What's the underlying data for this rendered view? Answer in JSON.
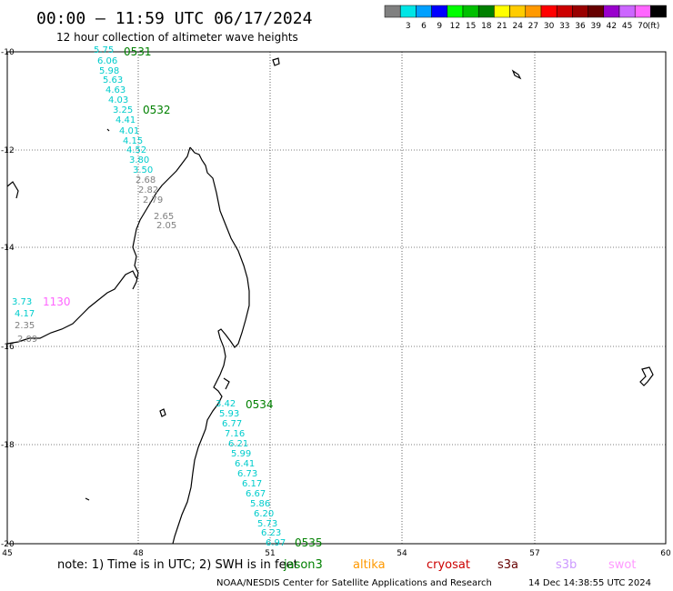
{
  "header": {
    "title": "00:00 — 11:59 UTC 06/17/2024",
    "subtitle": "12 hour collection of altimeter wave heights"
  },
  "legend": {
    "unit": "(ft)",
    "colors": [
      "#808080",
      "#00e5e5",
      "#00a0ff",
      "#0000ff",
      "#00ff00",
      "#00c000",
      "#008000",
      "#ffff00",
      "#ffcc00",
      "#ff9900",
      "#ff0000",
      "#cc0000",
      "#990000",
      "#660000",
      "#9900cc",
      "#cc66ff",
      "#ff66ff",
      "#000000"
    ],
    "labels": [
      "3",
      "6",
      "9",
      "12",
      "15",
      "18",
      "21",
      "24",
      "27",
      "30",
      "33",
      "36",
      "39",
      "42",
      "45",
      "70"
    ]
  },
  "map": {
    "x_ticks": [
      "45",
      "48",
      "51",
      "54",
      "57",
      "60"
    ],
    "y_ticks": [
      "-10",
      "-12",
      "-14",
      "-16",
      "-18",
      "-20"
    ],
    "lon_range": [
      45,
      60
    ],
    "lat_range": [
      -20,
      -10
    ]
  },
  "passes": [
    {
      "id": "0531",
      "color": "#008000"
    },
    {
      "id": "0532",
      "color": "#008000"
    },
    {
      "id": "1130",
      "color": "#ff66ff"
    },
    {
      "id": "0534",
      "color": "#008000"
    },
    {
      "id": "0535",
      "color": "#008000"
    }
  ],
  "wave_labels": [
    {
      "v": "5.75",
      "c": "#00cccc"
    },
    {
      "v": "6.06",
      "c": "#00cccc"
    },
    {
      "v": "5.98",
      "c": "#00cccc"
    },
    {
      "v": "5.63",
      "c": "#00cccc"
    },
    {
      "v": "4.63",
      "c": "#00cccc"
    },
    {
      "v": "4.03",
      "c": "#00cccc"
    },
    {
      "v": "3.25",
      "c": "#00cccc"
    },
    {
      "v": "4.41",
      "c": "#00cccc"
    },
    {
      "v": "4.01",
      "c": "#00cccc"
    },
    {
      "v": "4.15",
      "c": "#00cccc"
    },
    {
      "v": "4.52",
      "c": "#00cccc"
    },
    {
      "v": "3.80",
      "c": "#00cccc"
    },
    {
      "v": "3.50",
      "c": "#00cccc"
    },
    {
      "v": "2.68",
      "c": "#808080"
    },
    {
      "v": "2.82",
      "c": "#808080"
    },
    {
      "v": "2.79",
      "c": "#808080"
    },
    {
      "v": "2.65",
      "c": "#808080"
    },
    {
      "v": "2.05",
      "c": "#808080"
    },
    {
      "v": "3.73",
      "c": "#00cccc"
    },
    {
      "v": "4.17",
      "c": "#00cccc"
    },
    {
      "v": "2.35",
      "c": "#808080"
    },
    {
      "v": "2.09",
      "c": "#808080"
    },
    {
      "v": "3.42",
      "c": "#00cccc"
    },
    {
      "v": "5.93",
      "c": "#00cccc"
    },
    {
      "v": "6.77",
      "c": "#00cccc"
    },
    {
      "v": "7.16",
      "c": "#00cccc"
    },
    {
      "v": "6.21",
      "c": "#00cccc"
    },
    {
      "v": "5.99",
      "c": "#00cccc"
    },
    {
      "v": "6.41",
      "c": "#00cccc"
    },
    {
      "v": "6.73",
      "c": "#00cccc"
    },
    {
      "v": "6.17",
      "c": "#00cccc"
    },
    {
      "v": "6.67",
      "c": "#00cccc"
    },
    {
      "v": "5.86",
      "c": "#00cccc"
    },
    {
      "v": "6.20",
      "c": "#00cccc"
    },
    {
      "v": "5.73",
      "c": "#00cccc"
    },
    {
      "v": "6.23",
      "c": "#00cccc"
    },
    {
      "v": "6.97",
      "c": "#00cccc"
    }
  ],
  "note": "note: 1) Time is in UTC; 2) SWH is in feet",
  "satellites": [
    {
      "name": "jason3",
      "color": "#008000"
    },
    {
      "name": "altika",
      "color": "#ff9900"
    },
    {
      "name": "cryosat",
      "color": "#cc0000"
    },
    {
      "name": "s3a",
      "color": "#660000"
    },
    {
      "name": "s3b",
      "color": "#cc99ff"
    },
    {
      "name": "swot",
      "color": "#ff99ff"
    }
  ],
  "footer": {
    "credit": "NOAA/NESDIS Center for Satellite Applications and Research",
    "timestamp": "14 Dec 14:38:55 UTC 2024"
  }
}
